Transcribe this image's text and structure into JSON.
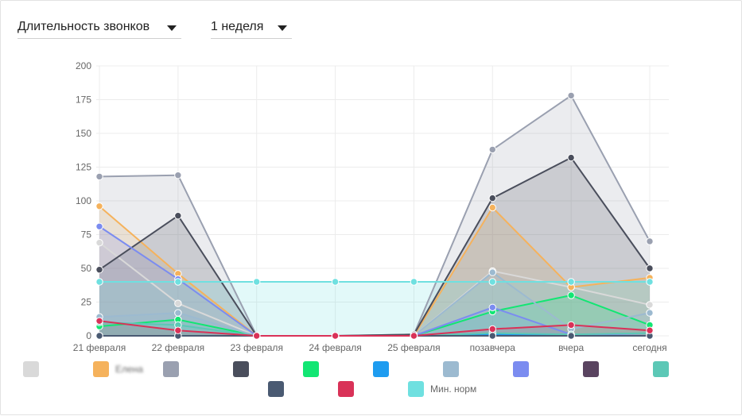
{
  "controls": {
    "metric_label": "Длительность звонков",
    "period_label": "1 неделя"
  },
  "chart_data": {
    "type": "area",
    "categories": [
      "21 февраля",
      "22 февраля",
      "23 февраля",
      "24 февраля",
      "25 февраля",
      "позавчера",
      "вчера",
      "сегодня"
    ],
    "ylim": [
      0,
      200
    ],
    "yticks": [
      0,
      25,
      50,
      75,
      100,
      125,
      150,
      175,
      200
    ],
    "grid": true,
    "legend_position": "bottom",
    "series": [
      {
        "name": "",
        "color": "#d9d9d9",
        "blurred": true,
        "values": [
          69,
          24,
          0,
          0,
          0,
          48,
          36,
          23
        ]
      },
      {
        "name": "Елена",
        "color": "#f5b25c",
        "blurred": true,
        "values": [
          96,
          46,
          0,
          0,
          0,
          95,
          36,
          43
        ]
      },
      {
        "name": "",
        "color": "#9aa0b0",
        "blurred": true,
        "values": [
          118,
          119,
          0,
          0,
          1,
          138,
          178,
          70
        ]
      },
      {
        "name": "",
        "color": "#4a4e5c",
        "blurred": true,
        "values": [
          49,
          89,
          0,
          0,
          1,
          102,
          132,
          50
        ]
      },
      {
        "name": "",
        "color": "#12e673",
        "blurred": true,
        "values": [
          7,
          12,
          0,
          0,
          0,
          18,
          30,
          8
        ]
      },
      {
        "name": "",
        "color": "#1e9cf0",
        "blurred": true,
        "values": [
          0,
          0,
          0,
          0,
          0,
          1,
          0,
          0
        ]
      },
      {
        "name": "",
        "color": "#9cbad0",
        "blurred": true,
        "values": [
          14,
          17,
          0,
          0,
          0,
          47,
          5,
          17
        ]
      },
      {
        "name": "",
        "color": "#7b8cf0",
        "blurred": true,
        "values": [
          81,
          42,
          0,
          0,
          0,
          21,
          1,
          0
        ]
      },
      {
        "name": "",
        "color": "#5a4460",
        "blurred": true,
        "values": [
          0,
          0,
          0,
          0,
          0,
          0,
          0,
          0
        ]
      },
      {
        "name": "",
        "color": "#5cc8b6",
        "blurred": true,
        "values": [
          10,
          8,
          0,
          0,
          0,
          2,
          1,
          2
        ]
      },
      {
        "name": "",
        "color": "#4a5a72",
        "blurred": true,
        "values": [
          0,
          0,
          0,
          0,
          0,
          0,
          0,
          0
        ]
      },
      {
        "name": "",
        "color": "#d93258",
        "blurred": true,
        "values": [
          11,
          4,
          0,
          0,
          0,
          5,
          8,
          4
        ]
      },
      {
        "name": "Мин. норм",
        "color": "#6fe0e0",
        "blurred": false,
        "values": [
          40,
          40,
          40,
          40,
          40,
          40,
          40,
          40
        ]
      }
    ]
  }
}
